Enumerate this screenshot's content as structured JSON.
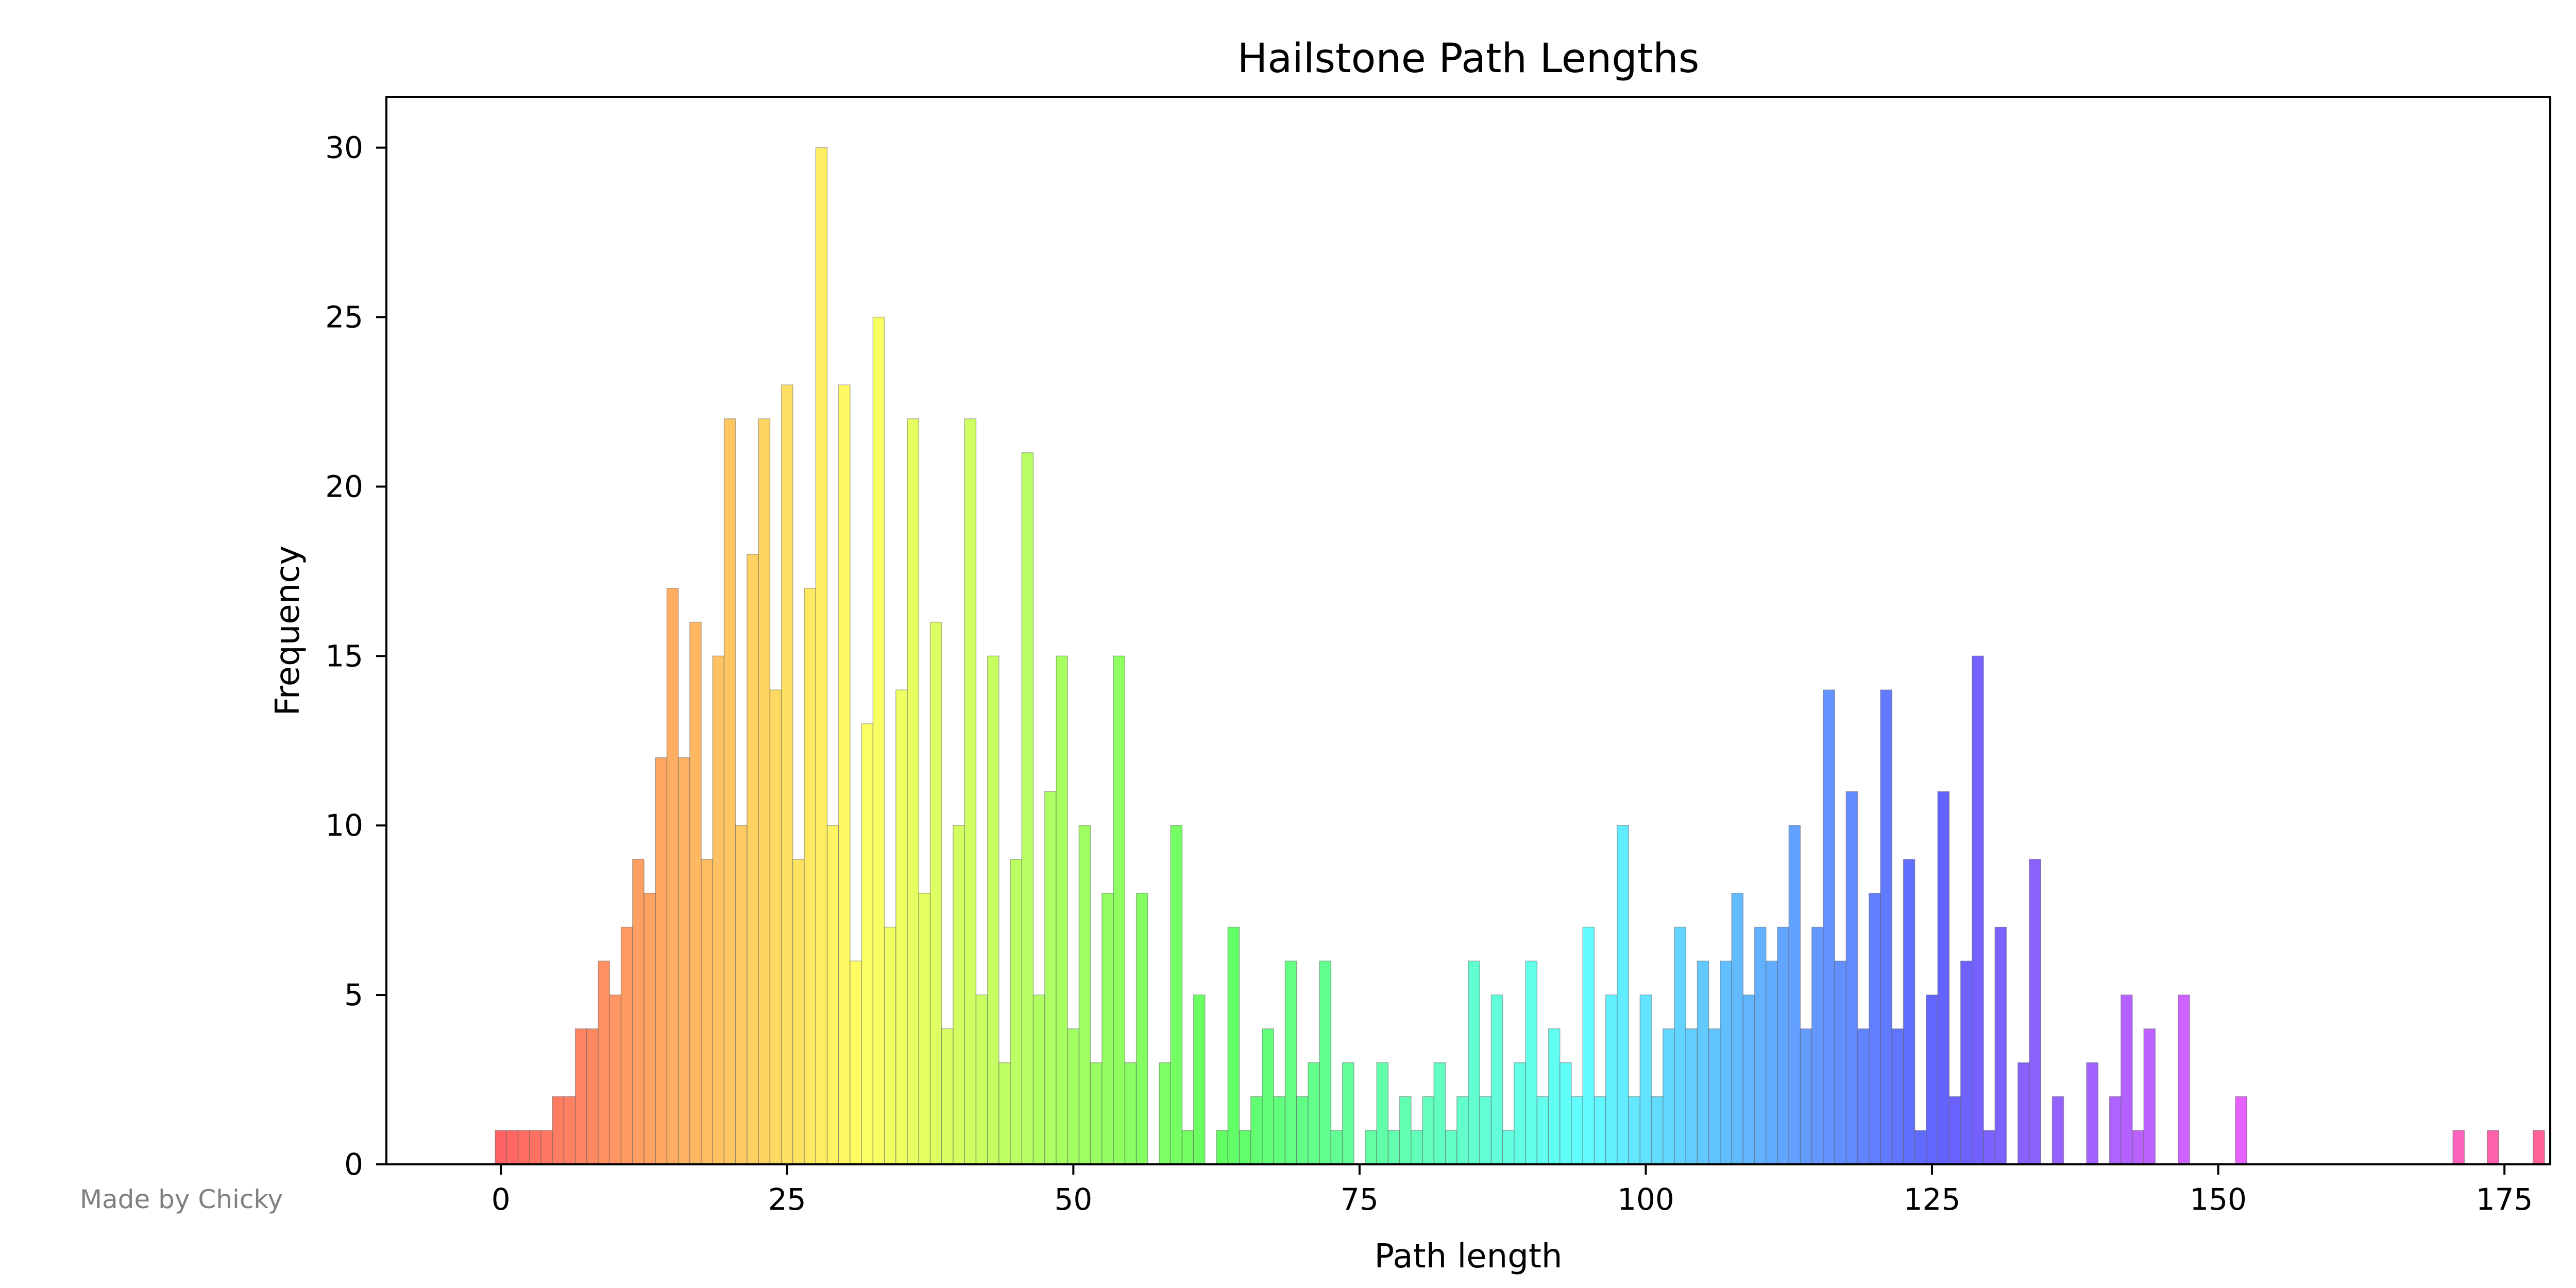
{
  "chart_data": {
    "type": "bar",
    "title": "Hailstone Path Lengths",
    "xlabel": "Path length",
    "ylabel": "Frequency",
    "xlim": [
      -10,
      179
    ],
    "ylim": [
      0,
      31.5
    ],
    "x_ticks": [
      0,
      25,
      50,
      75,
      100,
      125,
      150,
      175
    ],
    "y_ticks": [
      0,
      5,
      10,
      15,
      20,
      25,
      30
    ],
    "grid": false,
    "legend": "none",
    "bar_width": 1,
    "colors": "rainbow gradient by path length (red through orange, yellow, green, cyan, blue, violet to magenta)",
    "x": [
      0,
      1,
      2,
      3,
      4,
      5,
      6,
      7,
      8,
      9,
      10,
      11,
      12,
      13,
      14,
      15,
      16,
      17,
      18,
      19,
      20,
      21,
      22,
      23,
      24,
      25,
      26,
      27,
      28,
      29,
      30,
      31,
      32,
      33,
      34,
      35,
      36,
      37,
      38,
      39,
      40,
      41,
      42,
      43,
      44,
      45,
      46,
      47,
      48,
      49,
      50,
      51,
      52,
      53,
      54,
      55,
      56,
      57,
      58,
      59,
      60,
      61,
      62,
      63,
      64,
      65,
      66,
      67,
      68,
      69,
      70,
      71,
      72,
      73,
      74,
      75,
      76,
      77,
      78,
      79,
      80,
      81,
      82,
      83,
      84,
      85,
      86,
      87,
      88,
      89,
      90,
      91,
      92,
      93,
      94,
      95,
      96,
      97,
      98,
      99,
      100,
      101,
      102,
      103,
      104,
      105,
      106,
      107,
      108,
      109,
      110,
      111,
      112,
      113,
      114,
      115,
      116,
      117,
      118,
      119,
      120,
      121,
      122,
      123,
      124,
      125,
      126,
      127,
      128,
      129,
      130,
      131,
      132,
      133,
      134,
      135,
      136,
      137,
      138,
      139,
      140,
      141,
      142,
      143,
      144,
      145,
      146,
      147,
      148,
      149,
      150,
      151,
      152,
      153,
      154,
      155,
      156,
      157,
      158,
      159,
      160,
      161,
      162,
      163,
      164,
      165,
      166,
      167,
      168,
      169,
      170,
      171,
      172,
      173,
      174,
      175,
      176,
      177,
      178
    ],
    "values": [
      1,
      1,
      1,
      1,
      1,
      2,
      2,
      4,
      4,
      6,
      5,
      7,
      9,
      8,
      12,
      17,
      12,
      16,
      9,
      15,
      22,
      10,
      18,
      22,
      14,
      23,
      9,
      17,
      30,
      10,
      23,
      6,
      13,
      25,
      7,
      14,
      22,
      8,
      16,
      4,
      10,
      22,
      5,
      15,
      3,
      9,
      21,
      5,
      11,
      15,
      4,
      10,
      3,
      8,
      15,
      3,
      8,
      0,
      3,
      10,
      1,
      5,
      0,
      1,
      7,
      1,
      2,
      4,
      2,
      6,
      2,
      3,
      6,
      1,
      3,
      0,
      1,
      3,
      1,
      2,
      1,
      2,
      3,
      1,
      2,
      6,
      2,
      5,
      1,
      3,
      6,
      2,
      4,
      3,
      2,
      7,
      2,
      5,
      10,
      2,
      5,
      2,
      4,
      7,
      4,
      6,
      4,
      6,
      8,
      5,
      7,
      6,
      7,
      10,
      4,
      7,
      14,
      6,
      11,
      4,
      8,
      14,
      4,
      9,
      1,
      5,
      11,
      2,
      6,
      15,
      1,
      7,
      0,
      3,
      9,
      0,
      2,
      0,
      0,
      3,
      0,
      2,
      5,
      1,
      4,
      0,
      0,
      5,
      0,
      0,
      0,
      0,
      2,
      0,
      0,
      0,
      0,
      0,
      0,
      0,
      0,
      0,
      0,
      0,
      0,
      0,
      0,
      0,
      0,
      0,
      0,
      1,
      0,
      0,
      1,
      0,
      0,
      0,
      1
    ]
  },
  "watermark": "Made by Chicky"
}
